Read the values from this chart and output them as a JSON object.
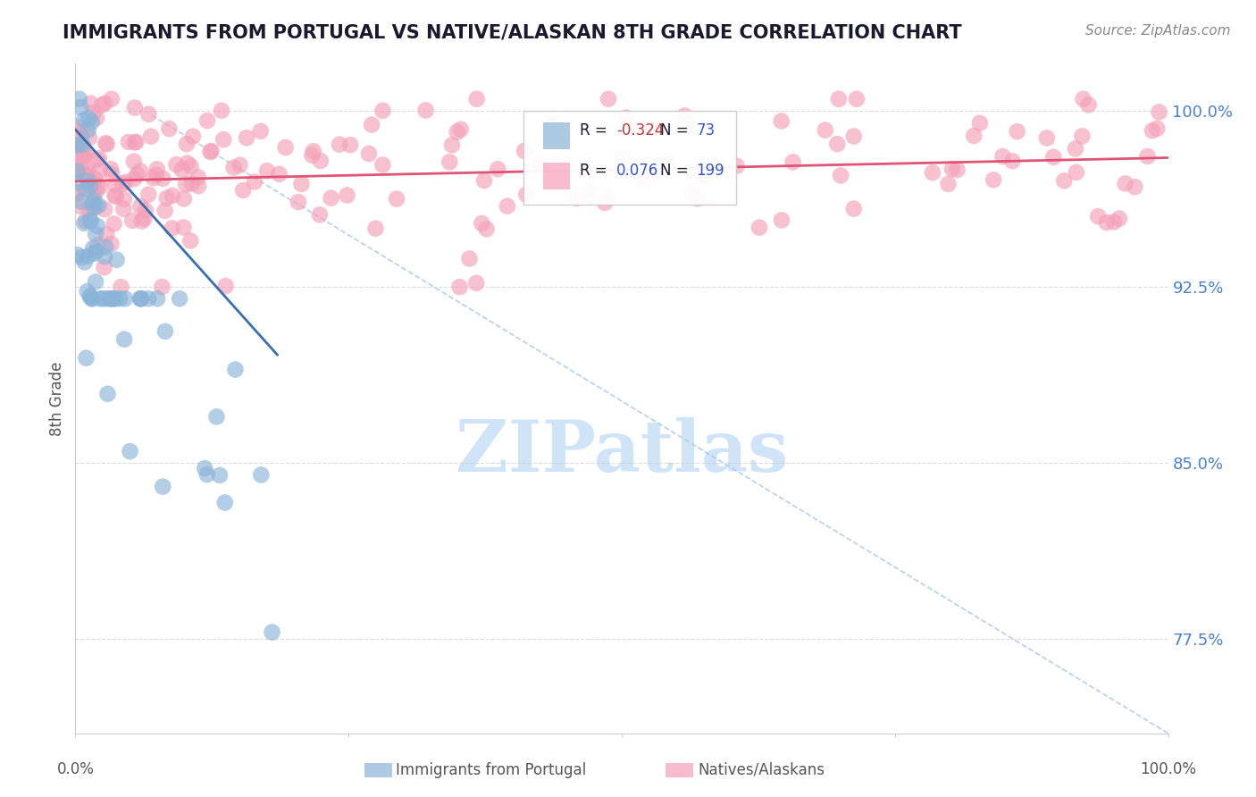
{
  "title": "IMMIGRANTS FROM PORTUGAL VS NATIVE/ALASKAN 8TH GRADE CORRELATION CHART",
  "source": "Source: ZipAtlas.com",
  "ylabel": "8th Grade",
  "y_tick_labels": [
    "77.5%",
    "85.0%",
    "92.5%",
    "100.0%"
  ],
  "y_tick_values": [
    0.775,
    0.85,
    0.925,
    1.0
  ],
  "blue_color": "#8ab4d8",
  "pink_color": "#f4a0b8",
  "trend_blue_color": "#3a6faf",
  "trend_pink_color": "#e05575",
  "dashed_line_color": "#aaccee",
  "title_color": "#1a1a2e",
  "source_color": "#888888",
  "watermark_color": "#d0e4f7",
  "watermark_text": "ZIPatlas",
  "xlim": [
    0.0,
    1.0
  ],
  "ylim": [
    0.735,
    1.02
  ],
  "blue_n": 73,
  "pink_n": 199,
  "blue_r": -0.324,
  "pink_r": 0.076
}
